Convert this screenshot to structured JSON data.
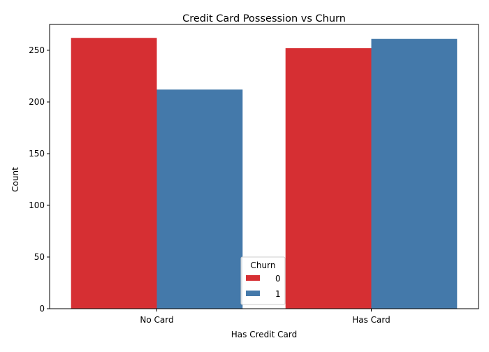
{
  "chart_data": {
    "type": "bar",
    "title": "Credit Card Possession vs Churn",
    "xlabel": "Has Credit Card",
    "ylabel": "Count",
    "categories": [
      "No Card",
      "Has Card"
    ],
    "series": [
      {
        "name": "0",
        "values": [
          262,
          252
        ],
        "color": "#d62f33"
      },
      {
        "name": "1",
        "values": [
          212,
          261
        ],
        "color": "#4479aa"
      }
    ],
    "ylim": [
      0,
      275
    ],
    "yticks": [
      0,
      50,
      100,
      150,
      200,
      250
    ],
    "grid": false,
    "legend": {
      "title": "Churn",
      "placement": "lower-center"
    }
  }
}
